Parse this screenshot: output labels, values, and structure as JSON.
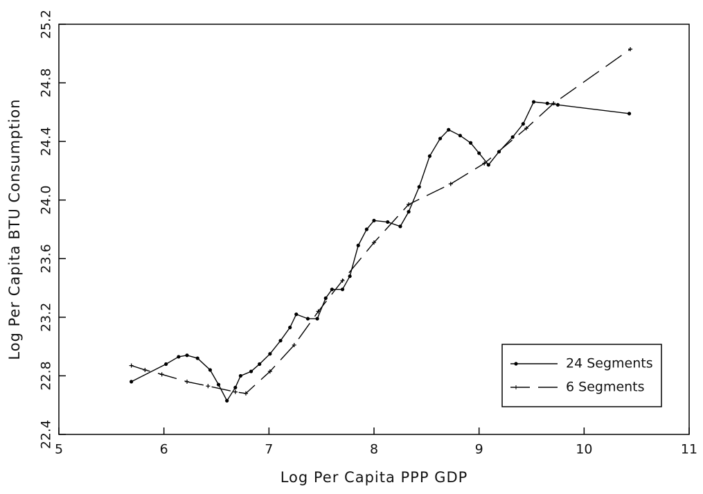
{
  "chart_data": {
    "type": "line",
    "x_label": "Log Per Capita PPP GDP",
    "y_label": "Log Per Capita BTU Consumption",
    "xlim": [
      5,
      11
    ],
    "xticks": [
      5,
      6,
      7,
      8,
      9,
      10,
      11
    ],
    "ylim": [
      22.4,
      25.2
    ],
    "yticks": [
      22.4,
      22.8,
      23.2,
      23.6,
      {
        "value": 24,
        "label": "24.0"
      },
      24.4,
      24.8,
      25.2
    ],
    "legend": "lower right",
    "series": [
      {
        "name": "24 Segments",
        "color": "#000000",
        "dash": "solid",
        "marker": "dot",
        "x": [
          5.69,
          6.02,
          6.14,
          6.22,
          6.32,
          6.44,
          6.52,
          6.6,
          6.68,
          6.73,
          6.83,
          6.91,
          7.01,
          7.11,
          7.2,
          7.26,
          7.37,
          7.46,
          7.54,
          7.6,
          7.7,
          7.77,
          7.85,
          7.93,
          8.0,
          8.13,
          8.25,
          8.33,
          8.43,
          8.53,
          8.63,
          8.71,
          8.82,
          8.92,
          9.0,
          9.09,
          9.19,
          9.32,
          9.42,
          9.52,
          9.65,
          9.75,
          10.43
        ],
        "values": [
          22.76,
          22.88,
          22.93,
          22.94,
          22.92,
          22.84,
          22.74,
          22.63,
          22.72,
          22.8,
          22.83,
          22.88,
          22.95,
          23.04,
          23.13,
          23.22,
          23.19,
          23.19,
          23.33,
          23.39,
          23.39,
          23.48,
          23.69,
          23.8,
          23.86,
          23.85,
          23.82,
          23.92,
          24.09,
          24.3,
          24.42,
          24.48,
          24.44,
          24.39,
          24.32,
          24.24,
          24.33,
          24.43,
          24.52,
          24.67,
          24.66,
          24.65,
          24.59
        ]
      },
      {
        "name": "6 Segments",
        "color": "#000000",
        "dash": "dashed",
        "marker": "plus",
        "x": [
          5.69,
          5.82,
          5.98,
          6.22,
          6.42,
          6.68,
          6.78,
          7.01,
          7.24,
          7.47,
          7.7,
          8.0,
          8.33,
          8.73,
          9.05,
          9.45,
          9.71,
          10.44
        ],
        "values": [
          22.87,
          22.84,
          22.81,
          22.76,
          22.73,
          22.69,
          22.68,
          22.83,
          23.01,
          23.24,
          23.45,
          23.71,
          23.97,
          24.11,
          24.25,
          24.49,
          24.66,
          25.03
        ]
      }
    ]
  }
}
